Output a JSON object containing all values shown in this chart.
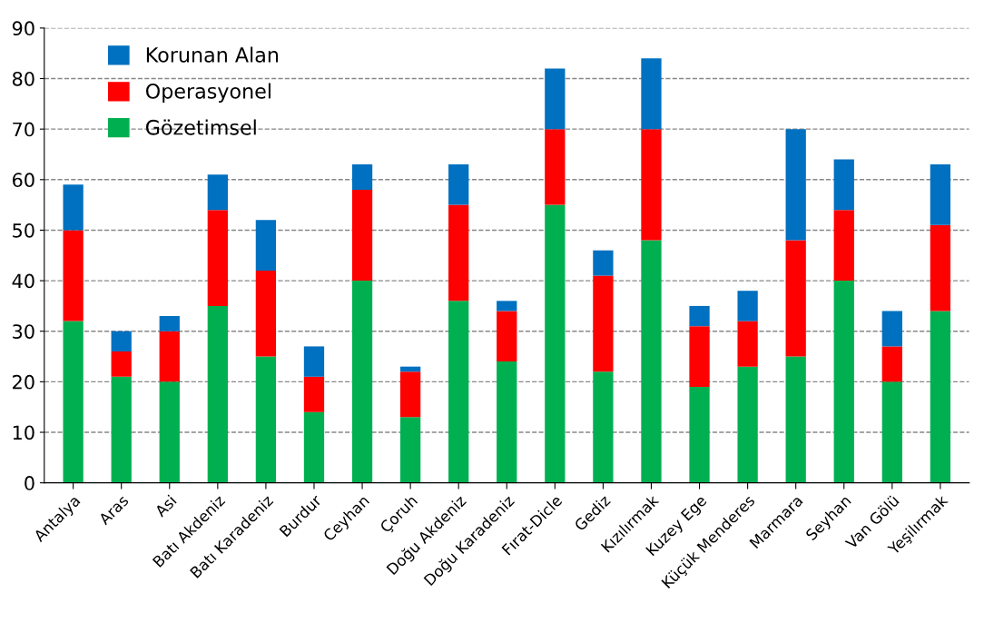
{
  "chart_data": {
    "type": "bar",
    "stacked": true,
    "categories": [
      "Antalya",
      "Aras",
      "Asi",
      "Batı Akdeniz",
      "Batı Karadeniz",
      "Burdur",
      "Ceyhan",
      "Çoruh",
      "Doğu Akdeniz",
      "Doğu Karadeniz",
      "Fırat-Dicle",
      "Gediz",
      "Kızılırmak",
      "Kuzey Ege",
      "Küçük Menderes",
      "Marmara",
      "Seyhan",
      "Van Gölü",
      "Yeşilırmak"
    ],
    "series": [
      {
        "name": "Gözetimsel",
        "color": "#00b050",
        "values": [
          32,
          21,
          20,
          35,
          25,
          14,
          40,
          13,
          36,
          24,
          55,
          22,
          48,
          19,
          23,
          25,
          40,
          20,
          34
        ]
      },
      {
        "name": "Operasyonel",
        "color": "#ff0000",
        "values": [
          18,
          5,
          10,
          19,
          17,
          7,
          18,
          9,
          19,
          10,
          15,
          19,
          22,
          12,
          9,
          23,
          14,
          7,
          17
        ]
      },
      {
        "name": "Korunan Alan",
        "color": "#0070c0",
        "values": [
          9,
          4,
          3,
          7,
          10,
          6,
          5,
          1,
          8,
          2,
          12,
          5,
          14,
          4,
          6,
          22,
          10,
          7,
          12
        ]
      }
    ],
    "ylim": [
      0,
      90
    ],
    "yticks": [
      0,
      10,
      20,
      30,
      40,
      50,
      60,
      70,
      80,
      90
    ],
    "grid": "y",
    "legend": "top left"
  }
}
